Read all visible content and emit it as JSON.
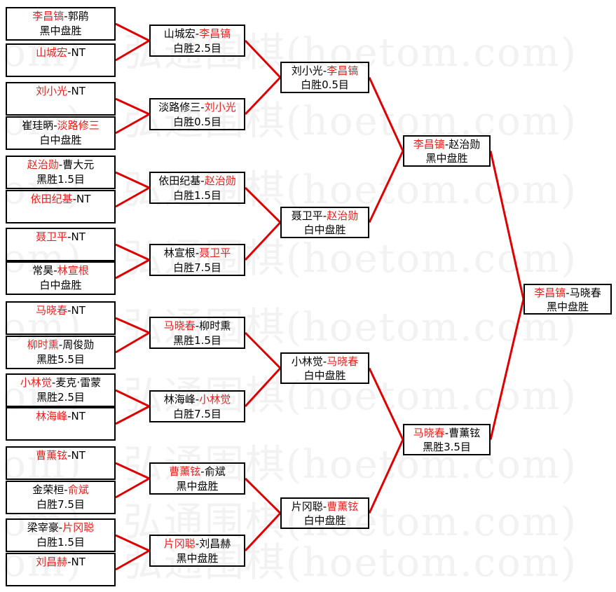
{
  "watermark": {
    "text": "弘通围棋(hoetom.com)"
  },
  "bracket": {
    "line_color": "#dd0000",
    "winner_color": "#e32222",
    "loser_color": "#000000",
    "bye_label": "NT",
    "rounds": [
      {
        "name": "round-1",
        "matches": [
          {
            "parts": [
              {
                "t": "李昌镐",
                "red": true
              },
              {
                "t": "-郭鹃",
                "red": false
              }
            ],
            "result": "黑中盘胜"
          },
          {
            "parts": [
              {
                "t": "山城宏",
                "red": true
              },
              {
                "t": "-NT",
                "red": false
              }
            ],
            "result": ""
          },
          {
            "parts": [
              {
                "t": "刘小光",
                "red": true
              },
              {
                "t": "-NT",
                "red": false
              }
            ],
            "result": ""
          },
          {
            "parts": [
              {
                "t": "崔珪昞-",
                "red": false
              },
              {
                "t": "淡路修三",
                "red": true
              }
            ],
            "result": "白中盘胜"
          },
          {
            "parts": [
              {
                "t": "赵治勋",
                "red": true
              },
              {
                "t": "-曹大元",
                "red": false
              }
            ],
            "result": "黑胜1.5目"
          },
          {
            "parts": [
              {
                "t": "依田纪基",
                "red": true
              },
              {
                "t": "-NT",
                "red": false
              }
            ],
            "result": ""
          },
          {
            "parts": [
              {
                "t": "聂卫平",
                "red": true
              },
              {
                "t": "-NT",
                "red": false
              }
            ],
            "result": ""
          },
          {
            "parts": [
              {
                "t": "常昊-",
                "red": false
              },
              {
                "t": "林宣根",
                "red": true
              }
            ],
            "result": "白中盘胜"
          },
          {
            "parts": [
              {
                "t": "马晓春",
                "red": true
              },
              {
                "t": "-NT",
                "red": false
              }
            ],
            "result": ""
          },
          {
            "parts": [
              {
                "t": "柳时熏",
                "red": true
              },
              {
                "t": "-周俊勋",
                "red": false
              }
            ],
            "result": "黑胜5.5目"
          },
          {
            "parts": [
              {
                "t": "小林觉",
                "red": true
              },
              {
                "t": "-麦克·雷蒙",
                "red": false
              }
            ],
            "result": "黑胜2.5目"
          },
          {
            "parts": [
              {
                "t": "林海峰",
                "red": true
              },
              {
                "t": "-NT",
                "red": false
              }
            ],
            "result": ""
          },
          {
            "parts": [
              {
                "t": "曹薰铉",
                "red": true
              },
              {
                "t": "-NT",
                "red": false
              }
            ],
            "result": ""
          },
          {
            "parts": [
              {
                "t": "金荣桓-",
                "red": false
              },
              {
                "t": "俞斌",
                "red": true
              }
            ],
            "result": "白胜7.5目"
          },
          {
            "parts": [
              {
                "t": "梁宰豪-",
                "red": false
              },
              {
                "t": "片冈聪",
                "red": true
              }
            ],
            "result": "白胜1.5目"
          },
          {
            "parts": [
              {
                "t": "刘昌赫",
                "red": true
              },
              {
                "t": "-NT",
                "red": false
              }
            ],
            "result": ""
          }
        ]
      },
      {
        "name": "round-2",
        "matches": [
          {
            "parts": [
              {
                "t": "山城宏-",
                "red": false
              },
              {
                "t": "李昌镐",
                "red": true
              }
            ],
            "result": "白胜2.5目"
          },
          {
            "parts": [
              {
                "t": "淡路修三-",
                "red": false
              },
              {
                "t": "刘小光",
                "red": true
              }
            ],
            "result": "白胜0.5目"
          },
          {
            "parts": [
              {
                "t": "依田纪基-",
                "red": false
              },
              {
                "t": "赵治勋",
                "red": true
              }
            ],
            "result": "白胜1.5目"
          },
          {
            "parts": [
              {
                "t": "林宣根-",
                "red": false
              },
              {
                "t": "聂卫平",
                "red": true
              }
            ],
            "result": "白胜7.5目"
          },
          {
            "parts": [
              {
                "t": "马晓春",
                "red": true
              },
              {
                "t": "-柳时熏",
                "red": false
              }
            ],
            "result": "黑胜1.5目"
          },
          {
            "parts": [
              {
                "t": "林海峰-",
                "red": false
              },
              {
                "t": "小林觉",
                "red": true
              }
            ],
            "result": "白胜7.5目"
          },
          {
            "parts": [
              {
                "t": "曹薰铉",
                "red": true
              },
              {
                "t": "-俞斌",
                "red": false
              }
            ],
            "result": "黑中盘胜"
          },
          {
            "parts": [
              {
                "t": "片冈聪",
                "red": true
              },
              {
                "t": "-刘昌赫",
                "red": false
              }
            ],
            "result": "黑中盘胜"
          }
        ]
      },
      {
        "name": "quarterfinals",
        "matches": [
          {
            "parts": [
              {
                "t": "刘小光-",
                "red": false
              },
              {
                "t": "李昌镐",
                "red": true
              }
            ],
            "result": "白胜0.5目"
          },
          {
            "parts": [
              {
                "t": "聂卫平-",
                "red": false
              },
              {
                "t": "赵治勋",
                "red": true
              }
            ],
            "result": "白中盘胜"
          },
          {
            "parts": [
              {
                "t": "小林觉-",
                "red": false
              },
              {
                "t": "马晓春",
                "red": true
              }
            ],
            "result": "白中盘胜"
          },
          {
            "parts": [
              {
                "t": "片冈聪-",
                "red": false
              },
              {
                "t": "曹薰铉",
                "red": true
              }
            ],
            "result": "白中盘胜"
          }
        ]
      },
      {
        "name": "semifinals",
        "matches": [
          {
            "parts": [
              {
                "t": "李昌镐",
                "red": true
              },
              {
                "t": "-赵治勋",
                "red": false
              }
            ],
            "result": "黑中盘胜"
          },
          {
            "parts": [
              {
                "t": "马晓春",
                "red": true
              },
              {
                "t": "-曹薰铉",
                "red": false
              }
            ],
            "result": "黑胜3.5目"
          }
        ]
      },
      {
        "name": "final",
        "matches": [
          {
            "parts": [
              {
                "t": "李昌镐",
                "red": true
              },
              {
                "t": "-马晓春",
                "red": false
              }
            ],
            "result": "黑中盘胜"
          }
        ]
      }
    ]
  }
}
